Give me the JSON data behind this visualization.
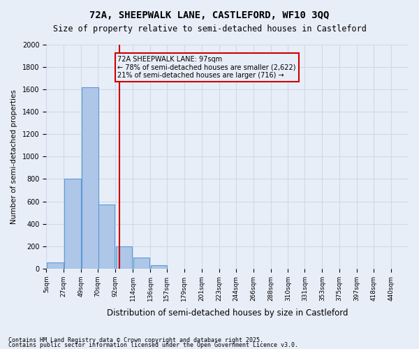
{
  "title1": "72A, SHEEPWALK LANE, CASTLEFORD, WF10 3QQ",
  "title2": "Size of property relative to semi-detached houses in Castleford",
  "xlabel": "Distribution of semi-detached houses by size in Castleford",
  "ylabel": "Number of semi-detached properties",
  "bin_labels": [
    "5sqm",
    "27sqm",
    "49sqm",
    "70sqm",
    "92sqm",
    "114sqm",
    "136sqm",
    "157sqm",
    "179sqm",
    "201sqm",
    "223sqm",
    "244sqm",
    "266sqm",
    "288sqm",
    "310sqm",
    "331sqm",
    "353sqm",
    "375sqm",
    "397sqm",
    "418sqm",
    "440sqm"
  ],
  "bin_edges": [
    5,
    27,
    49,
    70,
    92,
    114,
    136,
    157,
    179,
    201,
    223,
    244,
    266,
    288,
    310,
    331,
    353,
    375,
    397,
    418,
    440
  ],
  "bar_heights": [
    55,
    800,
    1620,
    575,
    200,
    100,
    30,
    0,
    0,
    0,
    0,
    0,
    0,
    0,
    0,
    0,
    0,
    0,
    0,
    0
  ],
  "bar_color": "#aec6e8",
  "bar_edge_color": "#5b9bd5",
  "property_size": 97,
  "property_label": "72A SHEEPWALK LANE: 97sqm",
  "pct_smaller": 78,
  "count_smaller": 2622,
  "pct_larger": 21,
  "count_larger": 716,
  "vline_color": "#cc0000",
  "annotation_box_color": "#cc0000",
  "ylim": [
    0,
    2000
  ],
  "yticks": [
    0,
    200,
    400,
    600,
    800,
    1000,
    1200,
    1400,
    1600,
    1800,
    2000
  ],
  "grid_color": "#d0d8e8",
  "bg_color": "#e8eef8",
  "footer1": "Contains HM Land Registry data © Crown copyright and database right 2025.",
  "footer2": "Contains public sector information licensed under the Open Government Licence v3.0."
}
